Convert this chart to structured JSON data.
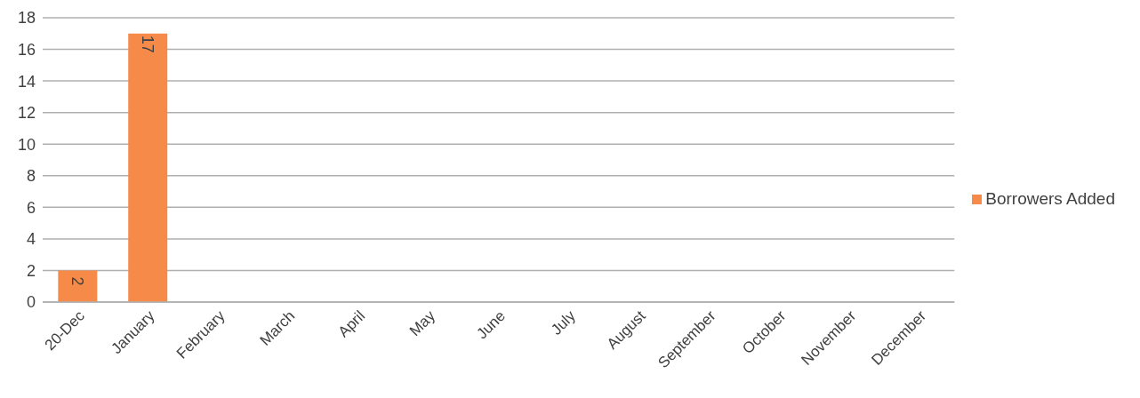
{
  "chart_data": {
    "type": "bar",
    "categories": [
      "20-Dec",
      "January",
      "February",
      "March",
      "April",
      "May",
      "June",
      "July",
      "August",
      "September",
      "October",
      "November",
      "December"
    ],
    "series": [
      {
        "name": "Borrowers Added",
        "color": "#f68a48",
        "values": [
          2,
          17,
          null,
          null,
          null,
          null,
          null,
          null,
          null,
          null,
          null,
          null,
          null
        ]
      }
    ],
    "ylim": [
      0,
      18
    ],
    "yticks": [
      0,
      2,
      4,
      6,
      8,
      10,
      12,
      14,
      16,
      18
    ],
    "grid": "y",
    "legend": "right",
    "data_labels": true
  }
}
